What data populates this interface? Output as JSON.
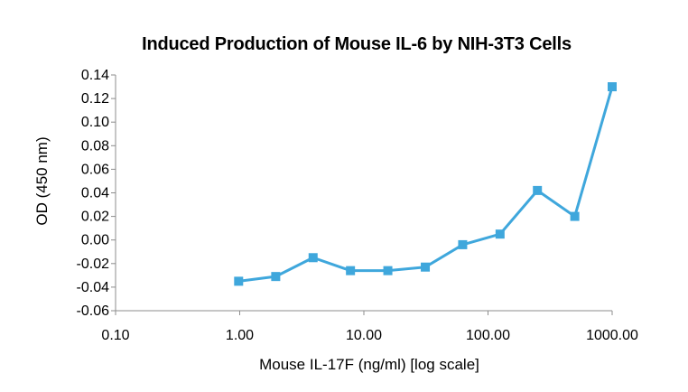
{
  "chart_data": {
    "type": "line",
    "title": "Induced Production of Mouse IL-6 by NIH-3T3 Cells",
    "xlabel": "Mouse IL-17F (ng/ml) [log scale]",
    "ylabel": "OD (450 nm)",
    "x_scale": "log",
    "xlim": [
      0.1,
      1000
    ],
    "ylim": [
      -0.06,
      0.14
    ],
    "x_ticks": [
      0.1,
      1,
      10,
      100,
      1000
    ],
    "x_tick_labels": [
      "0.10",
      "1.00",
      "10.00",
      "100.00",
      "1000.00"
    ],
    "y_ticks": [
      -0.06,
      -0.04,
      -0.02,
      0,
      0.02,
      0.04,
      0.06,
      0.08,
      0.1,
      0.12,
      0.14
    ],
    "y_tick_labels": [
      "-0.06",
      "-0.04",
      "-0.02",
      "0.00",
      "0.02",
      "0.04",
      "0.06",
      "0.08",
      "0.10",
      "0.12",
      "0.14"
    ],
    "grid": false,
    "legend": "none",
    "series": [
      {
        "color": "#3fa7dc",
        "marker": "square",
        "x": [
          0.98,
          1.95,
          3.9,
          7.8,
          15.6,
          31.25,
          62.5,
          125,
          250,
          500,
          1000
        ],
        "y": [
          -0.035,
          -0.031,
          -0.015,
          -0.026,
          -0.026,
          -0.023,
          -0.004,
          0.005,
          0.042,
          0.02,
          0.13
        ]
      }
    ]
  }
}
